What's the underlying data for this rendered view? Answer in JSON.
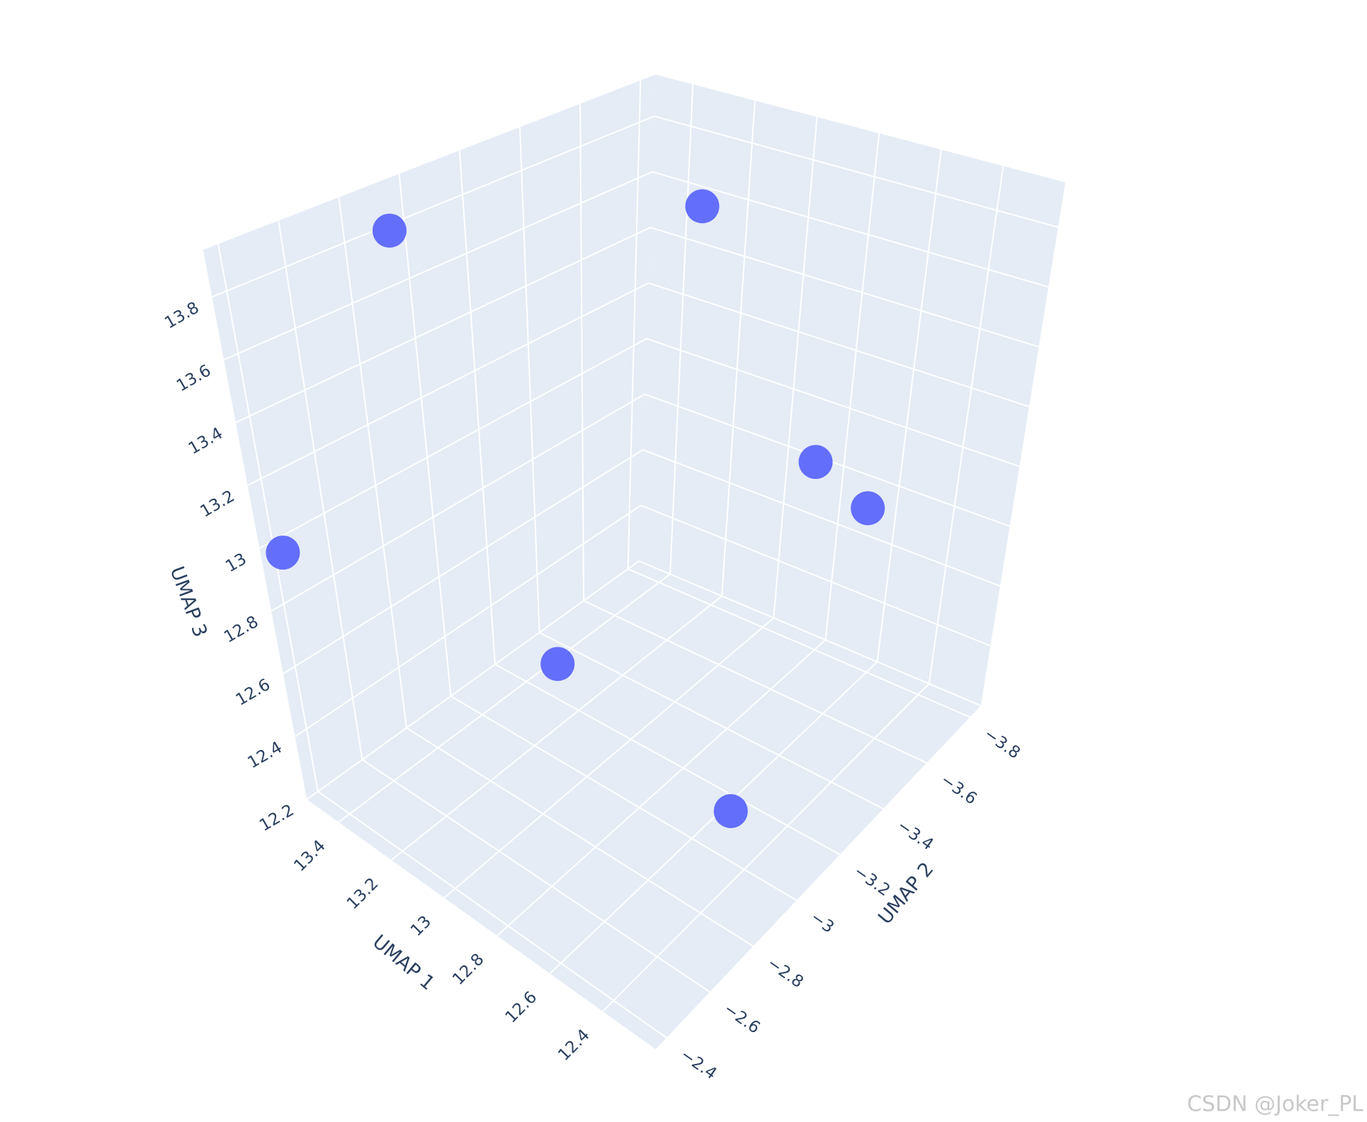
{
  "chart_data": {
    "type": "scatter3d",
    "x_label": "UMAP 1",
    "y_label": "UMAP 2",
    "z_label": "UMAP 3",
    "x": [
      13.52,
      13.35,
      12.9,
      12.7,
      13.52,
      13.32,
      12.56
    ],
    "y": [
      -2.95,
      -3.85,
      -3.85,
      -3.85,
      -2.43,
      -3.25,
      -3.13
    ],
    "z": [
      13.78,
      13.53,
      12.78,
      12.69,
      12.95,
      12.27,
      12.22
    ],
    "color": "#636efa",
    "xlim": [
      12.2,
      13.52
    ],
    "ylim": [
      -3.85,
      -2.35
    ],
    "zlim": [
      12.2,
      13.95
    ],
    "xticks": [
      12.4,
      12.6,
      12.8,
      13,
      13.2,
      13.4
    ],
    "yticks": [
      {
        "value": -3.8,
        "label": "−3.8"
      },
      {
        "value": -3.6,
        "label": "−3.6"
      },
      {
        "value": -3.4,
        "label": "−3.4"
      },
      {
        "value": -3.2,
        "label": "−3.2"
      },
      {
        "value": -3,
        "label": "−3"
      },
      {
        "value": -2.8,
        "label": "−2.8"
      },
      {
        "value": -2.6,
        "label": "−2.6"
      },
      {
        "value": -2.4,
        "label": "−2.4"
      }
    ],
    "zticks": [
      12.2,
      12.4,
      12.6,
      12.8,
      13,
      13.2,
      13.4,
      13.6,
      13.8
    ],
    "grid": true,
    "watermark": "CSDN @Joker_PL"
  }
}
